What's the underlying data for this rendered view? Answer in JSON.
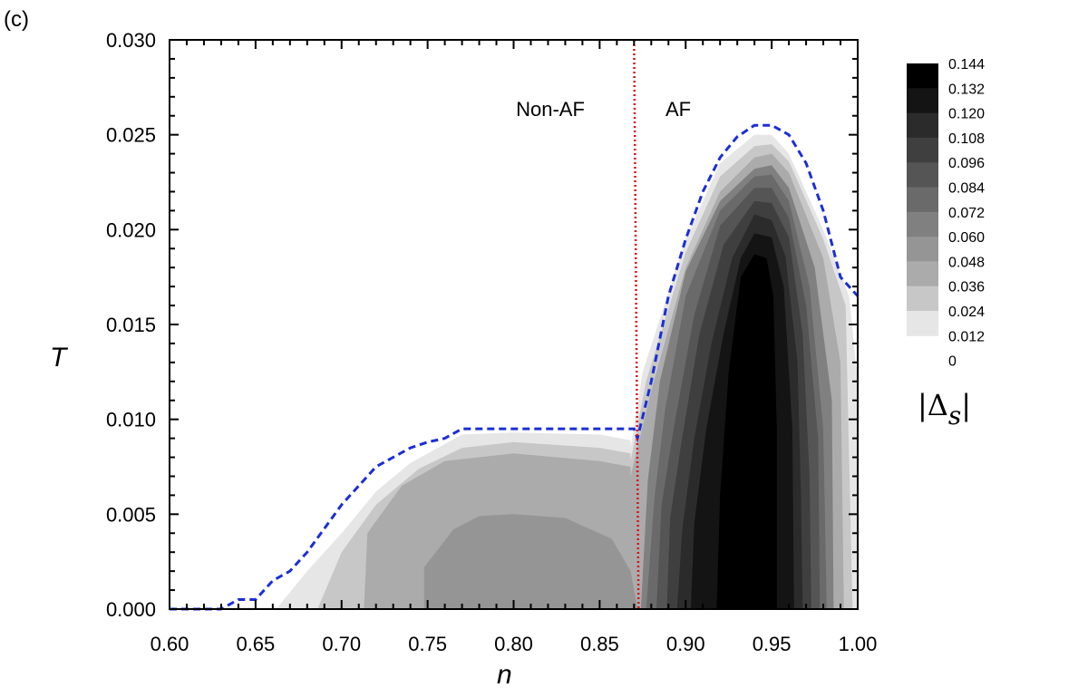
{
  "panel_label": "(c)",
  "chart_data": {
    "type": "heatmap",
    "title": "",
    "xlabel": "n",
    "ylabel": "T",
    "xlim": [
      0.6,
      1.0
    ],
    "ylim": [
      0.0,
      0.03
    ],
    "x_ticks": [
      "0.60",
      "0.65",
      "0.70",
      "0.75",
      "0.80",
      "0.85",
      "0.90",
      "0.95",
      "1.00"
    ],
    "y_ticks": [
      "0.000",
      "0.005",
      "0.010",
      "0.015",
      "0.020",
      "0.025",
      "0.030"
    ],
    "grid": false,
    "colorbar": {
      "title_bar": "|",
      "title_symbol": "Δ",
      "title_sub": "s",
      "levels": [
        "0.144",
        "0.132",
        "0.120",
        "0.108",
        "0.096",
        "0.084",
        "0.072",
        "0.060",
        "0.048",
        "0.036",
        "0.024",
        "0.012",
        "0"
      ],
      "colors": [
        "#000000",
        "#141414",
        "#2b2b2b",
        "#3f3f3f",
        "#555555",
        "#6a6a6a",
        "#808080",
        "#959595",
        "#ababab",
        "#c7c7c7",
        "#e6e6e6"
      ]
    },
    "region_labels": [
      "Non-AF",
      "AF"
    ],
    "af_boundary_n": 0.87,
    "tc_curve": {
      "n": [
        0.6,
        0.63,
        0.64,
        0.65,
        0.66,
        0.67,
        0.68,
        0.7,
        0.72,
        0.74,
        0.75,
        0.76,
        0.77,
        0.8,
        0.85,
        0.87,
        0.872,
        0.88,
        0.89,
        0.9,
        0.91,
        0.92,
        0.93,
        0.94,
        0.95,
        0.96,
        0.97,
        0.98,
        0.99,
        1.0
      ],
      "T": [
        0.0,
        0.0,
        0.0005,
        0.0005,
        0.0015,
        0.002,
        0.003,
        0.0055,
        0.0075,
        0.0085,
        0.0088,
        0.009,
        0.0095,
        0.0095,
        0.0095,
        0.0095,
        0.009,
        0.012,
        0.0165,
        0.0195,
        0.022,
        0.0238,
        0.0249,
        0.0255,
        0.0255,
        0.025,
        0.0235,
        0.021,
        0.0175,
        0.0165
      ]
    },
    "contours": [
      {
        "level": "0.012",
        "color": "#e6e6e6",
        "n": [
          0.662,
          0.68,
          0.7,
          0.72,
          0.74,
          0.77,
          0.8,
          0.85,
          0.868,
          0.868,
          0.875,
          0.9,
          0.92,
          0.94,
          0.95,
          0.96,
          0.98,
          0.995,
          1.0,
          1.0
        ],
        "T": [
          0.0,
          0.002,
          0.004,
          0.0062,
          0.0077,
          0.0092,
          0.0093,
          0.0092,
          0.0089,
          0.0085,
          0.0125,
          0.0195,
          0.0235,
          0.025,
          0.025,
          0.024,
          0.02,
          0.0165,
          0.012,
          0.0
        ]
      },
      {
        "level": "0.024",
        "color": "#c7c7c7",
        "n": [
          0.686,
          0.7,
          0.72,
          0.745,
          0.77,
          0.8,
          0.85,
          0.868,
          0.868,
          0.877,
          0.9,
          0.92,
          0.94,
          0.95,
          0.96,
          0.98,
          0.993,
          0.997
        ],
        "T": [
          0.0,
          0.003,
          0.0055,
          0.0074,
          0.0085,
          0.0088,
          0.0085,
          0.0082,
          0.0078,
          0.012,
          0.0188,
          0.0228,
          0.0244,
          0.0245,
          0.0236,
          0.0195,
          0.016,
          0.0
        ]
      },
      {
        "level": "0.036",
        "color": "#ababab",
        "n": [
          0.713,
          0.715,
          0.735,
          0.76,
          0.8,
          0.85,
          0.868,
          0.868,
          0.88,
          0.9,
          0.92,
          0.94,
          0.95,
          0.96,
          0.98,
          0.99,
          0.992
        ],
        "T": [
          0.0,
          0.004,
          0.0065,
          0.0078,
          0.0082,
          0.0078,
          0.0075,
          0.007,
          0.0115,
          0.018,
          0.022,
          0.0238,
          0.024,
          0.023,
          0.0185,
          0.013,
          0.0
        ]
      },
      {
        "level": "0.048",
        "color": "#959595",
        "n": [
          0.748,
          0.748,
          0.765,
          0.78,
          0.8,
          0.83,
          0.857,
          0.868,
          0.872,
          0.88,
          0.9,
          0.92,
          0.94,
          0.95,
          0.96,
          0.975,
          0.985,
          0.988
        ],
        "T": [
          0.0,
          0.0022,
          0.0042,
          0.0049,
          0.005,
          0.0048,
          0.0037,
          0.002,
          0.0,
          0.0,
          0.0,
          0.0,
          0.0,
          0.0,
          0.0,
          0.0,
          0.0,
          0.0
        ]
      },
      {
        "level": "0.060",
        "color": "#808080",
        "n": [
          0.874,
          0.878,
          0.885,
          0.9,
          0.92,
          0.94,
          0.95,
          0.96,
          0.975,
          0.985,
          0.986
        ],
        "T": [
          0.0,
          0.0068,
          0.012,
          0.0178,
          0.0215,
          0.0232,
          0.0234,
          0.0222,
          0.018,
          0.011,
          0.0
        ]
      },
      {
        "level": "0.072",
        "color": "#6a6a6a",
        "n": [
          0.877,
          0.882,
          0.888,
          0.9,
          0.92,
          0.94,
          0.95,
          0.96,
          0.972,
          0.98,
          0.982
        ],
        "T": [
          0.0,
          0.006,
          0.0105,
          0.0165,
          0.021,
          0.0228,
          0.0229,
          0.0215,
          0.017,
          0.0095,
          0.0
        ]
      },
      {
        "level": "0.084",
        "color": "#555555",
        "n": [
          0.883,
          0.886,
          0.893,
          0.905,
          0.92,
          0.94,
          0.95,
          0.96,
          0.97,
          0.977,
          0.978
        ],
        "T": [
          0.0,
          0.0055,
          0.0095,
          0.0155,
          0.0202,
          0.0222,
          0.0222,
          0.0206,
          0.016,
          0.009,
          0.0
        ]
      },
      {
        "level": "0.096",
        "color": "#3f3f3f",
        "n": [
          0.889,
          0.891,
          0.897,
          0.908,
          0.922,
          0.94,
          0.95,
          0.96,
          0.968,
          0.972,
          0.973
        ],
        "T": [
          0.0,
          0.0048,
          0.0085,
          0.0145,
          0.0192,
          0.0215,
          0.0214,
          0.0196,
          0.0145,
          0.007,
          0.0
        ]
      },
      {
        "level": "0.108",
        "color": "#2b2b2b",
        "n": [
          0.895,
          0.898,
          0.905,
          0.915,
          0.927,
          0.94,
          0.95,
          0.958,
          0.965,
          0.967,
          0.968
        ],
        "T": [
          0.0,
          0.0042,
          0.009,
          0.014,
          0.0185,
          0.0208,
          0.0205,
          0.0186,
          0.013,
          0.006,
          0.0
        ]
      },
      {
        "level": "0.120",
        "color": "#141414",
        "n": [
          0.903,
          0.905,
          0.912,
          0.922,
          0.932,
          0.94,
          0.95,
          0.957,
          0.962,
          0.963
        ],
        "T": [
          0.0,
          0.0045,
          0.0095,
          0.0145,
          0.0185,
          0.0198,
          0.0196,
          0.017,
          0.0095,
          0.0
        ]
      },
      {
        "level": "0.132",
        "color": "#000000",
        "n": [
          0.918,
          0.92,
          0.925,
          0.932,
          0.94,
          0.947,
          0.951,
          0.953,
          0.953
        ],
        "T": [
          0.0,
          0.006,
          0.0125,
          0.0175,
          0.0187,
          0.0185,
          0.0165,
          0.0095,
          0.0
        ]
      }
    ]
  }
}
